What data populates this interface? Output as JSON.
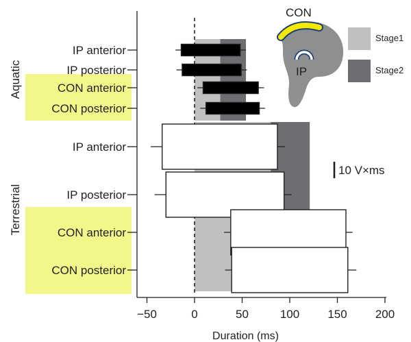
{
  "chart_data": {
    "type": "horizontal-box",
    "xlabel": "Duration (ms)",
    "xlim": [
      -60,
      205
    ],
    "xticks": [
      -50,
      0,
      50,
      100,
      150,
      200
    ],
    "reference_line_x": 0,
    "stages": [
      {
        "name": "Stage1",
        "color": "#c0c0c0"
      },
      {
        "name": "Stage2",
        "color": "#6d6e71"
      }
    ],
    "groups": [
      {
        "name": "Aquatic",
        "stage_bands": [
          {
            "stage": "Stage1",
            "from": 0,
            "to": 27
          },
          {
            "stage": "Stage2",
            "from": 27,
            "to": 54
          }
        ],
        "rows": [
          {
            "label": "IP anterior",
            "highlighted": false,
            "box": [
              -14,
              48
            ],
            "whiskers": [
              -20,
              54
            ]
          },
          {
            "label": "IP posterior",
            "highlighted": false,
            "box": [
              -13,
              49
            ],
            "whiskers": [
              -19,
              55
            ]
          },
          {
            "label": "CON anterior",
            "highlighted": true,
            "box": [
              9,
              67
            ],
            "whiskers": [
              3,
              73
            ]
          },
          {
            "label": "CON posterior",
            "highlighted": true,
            "box": [
              12,
              68
            ],
            "whiskers": [
              6,
              74
            ]
          }
        ]
      },
      {
        "name": "Terrestrial",
        "stage_bands": [
          {
            "stage": "Stage1",
            "from": 0,
            "to": 80
          },
          {
            "stage": "Stage2",
            "from": 80,
            "to": 121
          }
        ],
        "rows": [
          {
            "label": "IP anterior",
            "highlighted": false,
            "box": [
              -34,
              87
            ],
            "whiskers": [
              -46,
              95
            ]
          },
          {
            "label": "IP posterior",
            "highlighted": false,
            "box": [
              -30,
              94
            ],
            "whiskers": [
              -42,
              102
            ]
          },
          {
            "label": "CON anterior",
            "highlighted": true,
            "box": [
              38,
              159
            ],
            "whiskers": [
              31,
              166
            ]
          },
          {
            "label": "CON posterior",
            "highlighted": true,
            "box": [
              39,
              161
            ],
            "whiskers": [
              32,
              170
            ]
          }
        ]
      }
    ],
    "legend": {
      "placement": "top-right",
      "entries": [
        "Stage1",
        "Stage2"
      ]
    },
    "scale_bar_label": "10 V×ms",
    "inset": {
      "label_outer": "CON",
      "label_inner": "IP",
      "outer_color": "#f2ea00",
      "tissue_color": "#8e8f91",
      "arc_edge_color": "#1f3f7a"
    },
    "colors": {
      "aquatic_box": "#000000",
      "terrestrial_box": "#ffffff",
      "highlight": "#f3f78a",
      "ink": "#231f20"
    }
  }
}
